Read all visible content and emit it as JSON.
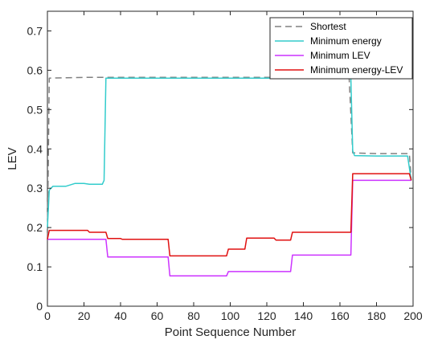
{
  "chart_data": {
    "type": "line",
    "title": "",
    "xlabel": "Point Sequence Number",
    "ylabel": "LEV",
    "xlim": [
      0,
      200
    ],
    "ylim": [
      0,
      0.75
    ],
    "xticks": [
      0,
      20,
      40,
      60,
      80,
      100,
      120,
      140,
      160,
      180,
      200
    ],
    "yticks": [
      0,
      0.1,
      0.2,
      0.3,
      0.4,
      0.5,
      0.6,
      0.7
    ],
    "ytick_labels": [
      "0",
      "0.1",
      "0.2",
      "0.3",
      "0.4",
      "0.5",
      "0.6",
      "0.7"
    ],
    "grid": false,
    "legend_position": "top-right",
    "series": [
      {
        "name": "Shortest",
        "color": "#808080",
        "style": "dashed",
        "points": [
          [
            0,
            0.17
          ],
          [
            1,
            0.58
          ],
          [
            22,
            0.582
          ],
          [
            33,
            0.582
          ],
          [
            60,
            0.582
          ],
          [
            100,
            0.582
          ],
          [
            140,
            0.582
          ],
          [
            165,
            0.582
          ],
          [
            167,
            0.39
          ],
          [
            180,
            0.388
          ],
          [
            198,
            0.388
          ],
          [
            199,
            0.32
          ]
        ]
      },
      {
        "name": "Minimum energy",
        "color": "#33cccc",
        "style": "solid",
        "points": [
          [
            0,
            0.2
          ],
          [
            1,
            0.295
          ],
          [
            3,
            0.305
          ],
          [
            10,
            0.305
          ],
          [
            15,
            0.312
          ],
          [
            20,
            0.312
          ],
          [
            23,
            0.31
          ],
          [
            30,
            0.31
          ],
          [
            31,
            0.32
          ],
          [
            32,
            0.58
          ],
          [
            60,
            0.58
          ],
          [
            100,
            0.58
          ],
          [
            140,
            0.58
          ],
          [
            166,
            0.58
          ],
          [
            167,
            0.395
          ],
          [
            168,
            0.383
          ],
          [
            180,
            0.382
          ],
          [
            197,
            0.382
          ],
          [
            199,
            0.32
          ]
        ]
      },
      {
        "name": "Minimum LEV",
        "color": "#cc33ff",
        "style": "solid",
        "points": [
          [
            0,
            0.17
          ],
          [
            1,
            0.17
          ],
          [
            32,
            0.17
          ],
          [
            33,
            0.125
          ],
          [
            66,
            0.125
          ],
          [
            67,
            0.077
          ],
          [
            98,
            0.077
          ],
          [
            99,
            0.088
          ],
          [
            133,
            0.088
          ],
          [
            134,
            0.13
          ],
          [
            166,
            0.13
          ],
          [
            167,
            0.32
          ],
          [
            199,
            0.32
          ]
        ]
      },
      {
        "name": "Minimum energy-LEV",
        "color": "#e01010",
        "style": "solid",
        "points": [
          [
            0,
            0.17
          ],
          [
            1,
            0.193
          ],
          [
            22,
            0.193
          ],
          [
            23,
            0.188
          ],
          [
            32,
            0.188
          ],
          [
            33,
            0.172
          ],
          [
            40,
            0.172
          ],
          [
            41,
            0.17
          ],
          [
            66,
            0.17
          ],
          [
            67,
            0.128
          ],
          [
            98,
            0.128
          ],
          [
            99,
            0.145
          ],
          [
            108,
            0.145
          ],
          [
            109,
            0.173
          ],
          [
            124,
            0.173
          ],
          [
            125,
            0.168
          ],
          [
            133,
            0.168
          ],
          [
            134,
            0.188
          ],
          [
            166,
            0.188
          ],
          [
            167,
            0.337
          ],
          [
            198,
            0.337
          ],
          [
            199,
            0.32
          ]
        ]
      }
    ]
  }
}
